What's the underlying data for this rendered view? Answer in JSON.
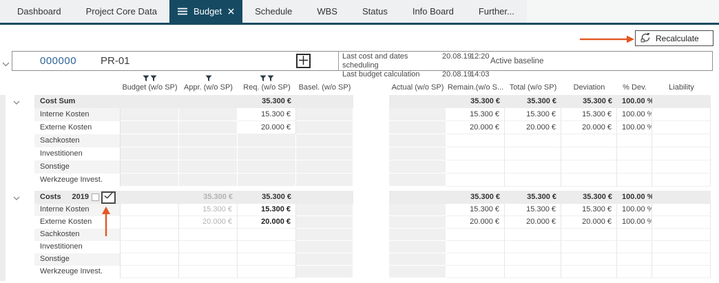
{
  "tabs": {
    "items": [
      {
        "label": "Dashboard",
        "active": false
      },
      {
        "label": "Project Core Data",
        "active": false
      },
      {
        "label": "Budget",
        "active": true
      },
      {
        "label": "Schedule",
        "active": false
      },
      {
        "label": "WBS",
        "active": false
      },
      {
        "label": "Status",
        "active": false
      },
      {
        "label": "Info Board",
        "active": false
      },
      {
        "label": "Further...",
        "active": false
      }
    ]
  },
  "toolbar": {
    "recalculate_label": "Recalculate"
  },
  "project": {
    "number": "000000",
    "code": "PR-01",
    "scheduling_label": "Last cost and dates scheduling",
    "scheduling_date": "20.08.19",
    "scheduling_time": "12:20",
    "budget_calc_label": "Last budget calculation",
    "budget_calc_date": "20.08.19",
    "budget_calc_time": "14:03",
    "baseline_label": "Active baseline"
  },
  "table": {
    "left_columns": [
      {
        "label": "Budget (w/o SP)",
        "filters": 2
      },
      {
        "label": "Appr. (w/o SP)",
        "filters": 1
      },
      {
        "label": "Req. (w/o SP)",
        "filters": 2
      },
      {
        "label": "Basel. (w/o SP)",
        "filters": 0
      }
    ],
    "right_columns": [
      {
        "label": "Actual (w/o SP)"
      },
      {
        "label": "Remain.(w/o S..."
      },
      {
        "label": "Total (w/o SP)"
      },
      {
        "label": "Deviation"
      },
      {
        "label": "% Dev."
      },
      {
        "label": "Liability"
      }
    ],
    "groups": [
      {
        "title": "Cost Sum",
        "year": "",
        "checkbox": false,
        "header": {
          "budget": "",
          "appr": "",
          "req": "35.300 €",
          "basel": "",
          "actual": "",
          "remain": "35.300 €",
          "total": "35.300 €",
          "deviation": "35.300 €",
          "pct": "100.00 %",
          "liability": ""
        },
        "rows": [
          {
            "label": "Interne Kosten",
            "budget": "",
            "appr": "",
            "req": "15.300 €",
            "basel": "",
            "actual": "",
            "remain": "15.300 €",
            "total": "15.300 €",
            "deviation": "15.300 €",
            "pct": "100.00 %",
            "liability": ""
          },
          {
            "label": "Externe Kosten",
            "budget": "",
            "appr": "",
            "req": "20.000 €",
            "basel": "",
            "actual": "",
            "remain": "20.000 €",
            "total": "20.000 €",
            "deviation": "20.000 €",
            "pct": "100.00 %",
            "liability": ""
          },
          {
            "label": "Sachkosten",
            "budget": "",
            "appr": "",
            "req": "",
            "basel": "",
            "actual": "",
            "remain": "",
            "total": "",
            "deviation": "",
            "pct": "",
            "liability": ""
          },
          {
            "label": "Investitionen",
            "budget": "",
            "appr": "",
            "req": "",
            "basel": "",
            "actual": "",
            "remain": "",
            "total": "",
            "deviation": "",
            "pct": "",
            "liability": ""
          },
          {
            "label": "Sonstige",
            "budget": "",
            "appr": "",
            "req": "",
            "basel": "",
            "actual": "",
            "remain": "",
            "total": "",
            "deviation": "",
            "pct": "",
            "liability": ""
          },
          {
            "label": "Werkzeuge Invest.",
            "budget": "",
            "appr": "",
            "req": "",
            "basel": "",
            "actual": "",
            "remain": "",
            "total": "",
            "deviation": "",
            "pct": "",
            "liability": ""
          }
        ]
      },
      {
        "title": "Costs",
        "year": "2019",
        "checkbox": true,
        "header": {
          "budget": "",
          "appr": "35.300 €",
          "req": "35.300 €",
          "basel": "",
          "actual": "",
          "remain": "35.300 €",
          "total": "35.300 €",
          "deviation": "35.300 €",
          "pct": "100.00 %",
          "liability": ""
        },
        "rows": [
          {
            "label": "Interne Kosten",
            "budget": "",
            "appr": "15.300 €",
            "req": "15.300 €",
            "basel": "",
            "actual": "",
            "remain": "15.300 €",
            "total": "15.300 €",
            "deviation": "15.300 €",
            "pct": "100.00 %",
            "liability": ""
          },
          {
            "label": "Externe Kosten",
            "budget": "",
            "appr": "20.000 €",
            "req": "20.000 €",
            "basel": "",
            "actual": "",
            "remain": "20.000 €",
            "total": "20.000 €",
            "deviation": "20.000 €",
            "pct": "100.00 %",
            "liability": ""
          },
          {
            "label": "Sachkosten",
            "budget": "",
            "appr": "",
            "req": "",
            "basel": "",
            "actual": "",
            "remain": "",
            "total": "",
            "deviation": "",
            "pct": "",
            "liability": ""
          },
          {
            "label": "Investitionen",
            "budget": "",
            "appr": "",
            "req": "",
            "basel": "",
            "actual": "",
            "remain": "",
            "total": "",
            "deviation": "",
            "pct": "",
            "liability": ""
          },
          {
            "label": "Sonstige",
            "budget": "",
            "appr": "",
            "req": "",
            "basel": "",
            "actual": "",
            "remain": "",
            "total": "",
            "deviation": "",
            "pct": "",
            "liability": ""
          },
          {
            "label": "Werkzeuge Invest.",
            "budget": "",
            "appr": "",
            "req": "",
            "basel": "",
            "actual": "",
            "remain": "",
            "total": "",
            "deviation": "",
            "pct": "",
            "liability": ""
          }
        ]
      }
    ]
  },
  "icons": {
    "menu": "hamburger",
    "close": "x",
    "recalculate": "circular-arrows",
    "filter": "funnel",
    "chevron": "chevron-down",
    "plus": "plus",
    "check": "checkmark",
    "annotation": "orange-arrow"
  },
  "colors": {
    "accent_navy": "#164a63",
    "annotation_orange": "#e25822",
    "link_blue": "#2e6496"
  }
}
